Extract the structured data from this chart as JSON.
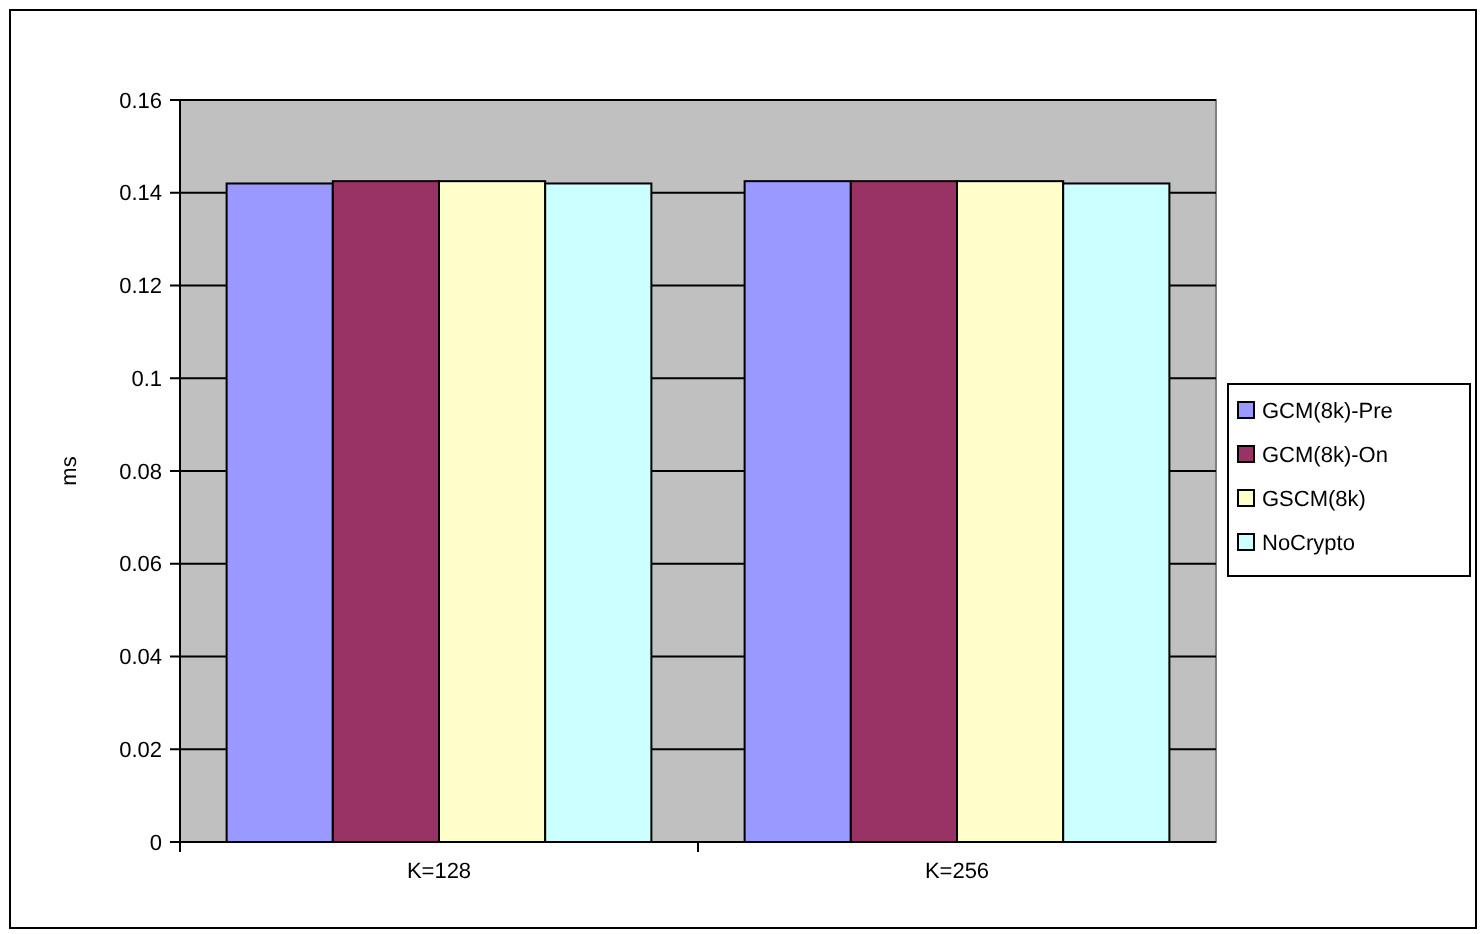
{
  "chart_data": {
    "type": "bar",
    "ylabel": "ms",
    "categories": [
      "K=128",
      "K=256"
    ],
    "series": [
      {
        "name": "GCM(8k)-Pre",
        "color": "#9999ff",
        "values": [
          0.142,
          0.1425
        ]
      },
      {
        "name": "GCM(8k)-On",
        "color": "#993366",
        "values": [
          0.1425,
          0.1425
        ]
      },
      {
        "name": "GSCM(8k)",
        "color": "#ffffcc",
        "values": [
          0.1425,
          0.1425
        ]
      },
      {
        "name": "NoCrypto",
        "color": "#ccffff",
        "values": [
          0.142,
          0.142
        ]
      }
    ],
    "ylim": [
      0,
      0.16
    ],
    "yticks": [
      0,
      0.02,
      0.04,
      0.06,
      0.08,
      0.1,
      0.12,
      0.14,
      0.16
    ],
    "grid": "y",
    "legend": "right"
  }
}
